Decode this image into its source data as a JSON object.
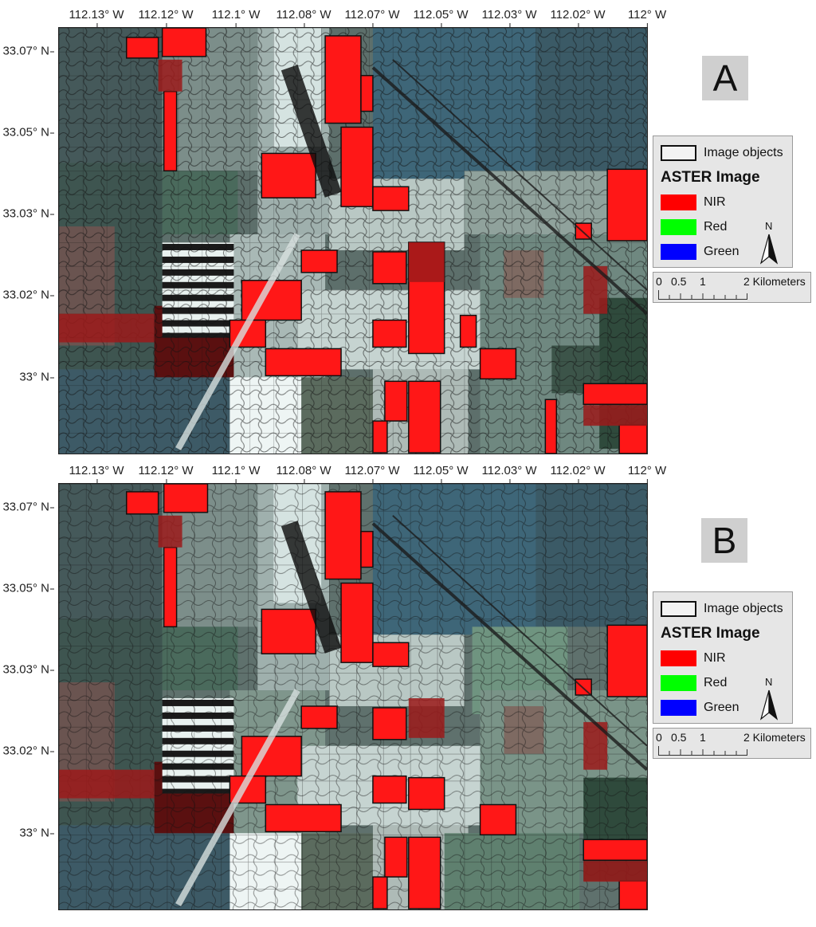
{
  "lon_ticks": [
    "112.13° W",
    "112.12° W",
    "112.1° W",
    "112.08° W",
    "112.07° W",
    "112.05° W",
    "112.03° W",
    "112.02° W",
    "112° W"
  ],
  "lat_ticks": [
    "33.07° N",
    "33.05° N",
    "33.03° N",
    "33.02° N",
    "33° N"
  ],
  "panels": [
    {
      "letter": "A"
    },
    {
      "letter": "B"
    }
  ],
  "legend": {
    "objects_label": "Image objects",
    "title": "ASTER Image",
    "bands": [
      {
        "label": "NIR",
        "color": "#ff0000"
      },
      {
        "label": "Red",
        "color": "#00ff00"
      },
      {
        "label": "Green",
        "color": "#0000ff"
      }
    ],
    "north_label": "N"
  },
  "scalebar": {
    "labels": [
      "0",
      "0.5",
      "1",
      "2 Kilometers"
    ]
  },
  "colors": {
    "nir_field": "#ff1a1a",
    "soil": "#dde6e4",
    "vegetation_dark": "#2e473f",
    "vegetation_mid": "#6f8a80",
    "urban_blue": "#3f6f82",
    "boundary": "#111111"
  }
}
